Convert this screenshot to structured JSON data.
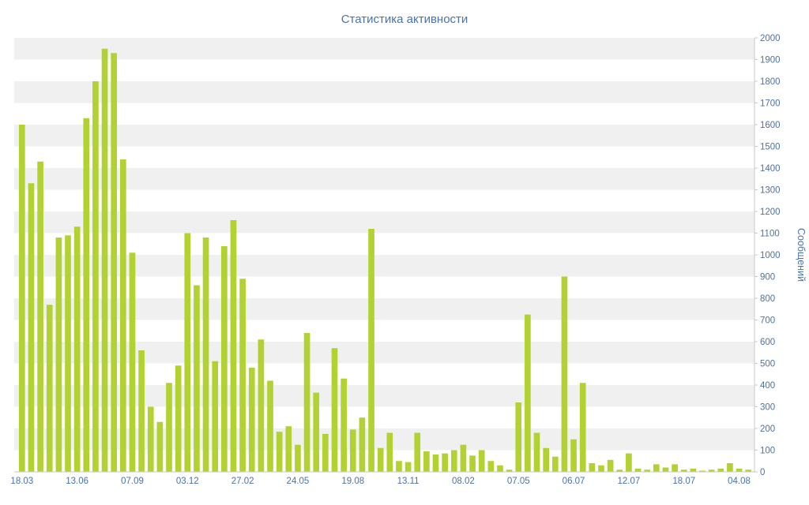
{
  "page": {
    "title": "Статистика активности"
  },
  "colors": {
    "bar": "#b2d233",
    "axis_text": "#4a72a8",
    "band_gray": "#f0f0f0",
    "band_white": "#ffffff",
    "axis_line": "#c9c9c9",
    "background": "#ffffff"
  },
  "chart_data": {
    "type": "bar",
    "title": "Статистика активности",
    "xlabel": "",
    "ylabel": "Сообщений",
    "ylim": [
      0,
      2000
    ],
    "y_tick_step": 100,
    "grid": "alternating horizontal bands every 100 units",
    "legend_position": "none",
    "value_axis_side": "right",
    "x_tick_labels": [
      "18.03",
      "13.06",
      "07.09",
      "03.12",
      "27.02",
      "24.05",
      "19.08",
      "13.11",
      "08.02",
      "07.05",
      "06.07",
      "12.07",
      "18.07",
      "04.08"
    ],
    "x_tick_indices": [
      0,
      6,
      12,
      18,
      24,
      30,
      36,
      42,
      48,
      54,
      60,
      66,
      72,
      78
    ],
    "values": [
      1600,
      1330,
      1430,
      770,
      1080,
      1090,
      1130,
      1630,
      1800,
      1950,
      1930,
      1440,
      1010,
      560,
      300,
      230,
      410,
      490,
      1100,
      860,
      1080,
      510,
      1040,
      1160,
      890,
      480,
      610,
      420,
      185,
      210,
      125,
      640,
      365,
      175,
      570,
      430,
      195,
      250,
      1120,
      110,
      180,
      50,
      45,
      180,
      95,
      80,
      85,
      100,
      125,
      75,
      100,
      50,
      30,
      10,
      320,
      725,
      180,
      110,
      70,
      900,
      150,
      410,
      40,
      30,
      55,
      10,
      85,
      15,
      10,
      35,
      20,
      35,
      10,
      15,
      5,
      10,
      15,
      40,
      15,
      10
    ]
  }
}
